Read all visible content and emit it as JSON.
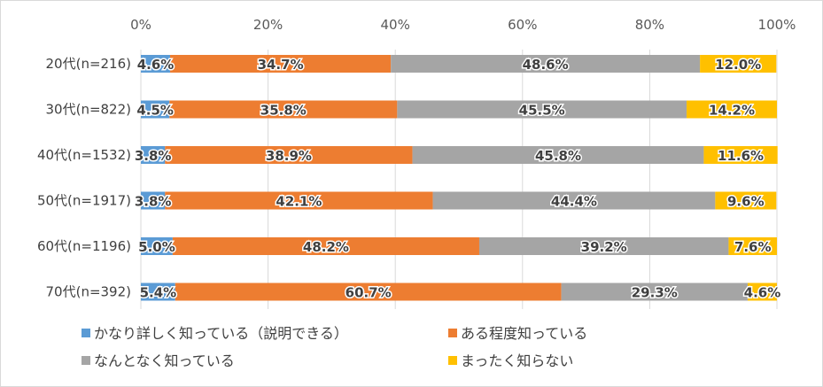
{
  "chart_data": {
    "type": "bar",
    "orientation": "horizontal",
    "stacked": true,
    "categories": [
      "20代(n=216)",
      "30代(n=822)",
      "40代(n=1532)",
      "50代(n=1917)",
      "60代(n=1196)",
      "70代(n=392)"
    ],
    "series": [
      {
        "name": "かなり詳しく知っている（説明できる）",
        "color": "#5b9bd5",
        "values": [
          4.6,
          4.5,
          3.8,
          3.8,
          5.0,
          5.4
        ]
      },
      {
        "name": "ある程度知っている",
        "color": "#ed7d31",
        "values": [
          34.7,
          35.8,
          38.9,
          42.1,
          48.2,
          60.7
        ]
      },
      {
        "name": "なんとなく知っている",
        "color": "#a5a5a5",
        "values": [
          48.6,
          45.5,
          45.8,
          44.4,
          39.2,
          29.3
        ]
      },
      {
        "name": "まったく知らない",
        "color": "#ffc000",
        "values": [
          12.0,
          14.2,
          11.6,
          9.6,
          7.6,
          4.6
        ]
      }
    ],
    "x_ticks": [
      "0%",
      "20%",
      "40%",
      "60%",
      "80%",
      "100%"
    ],
    "xlim": [
      0,
      100
    ],
    "grid": true,
    "legend_position": "bottom",
    "title": "",
    "xlabel": "",
    "ylabel": ""
  }
}
